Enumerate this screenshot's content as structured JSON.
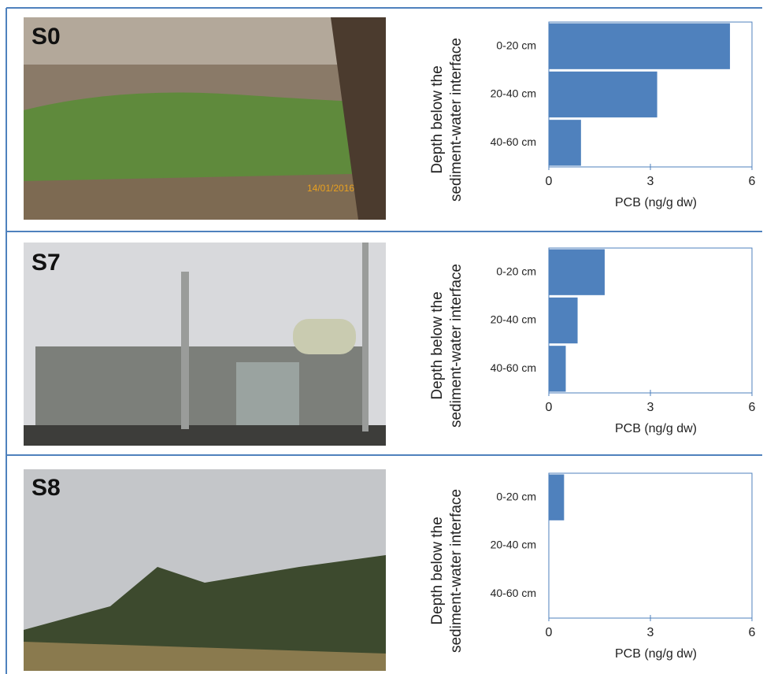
{
  "chart_data": [
    {
      "type": "barh",
      "title": "S0",
      "annotation": "14/01/2016",
      "categories": [
        "0-20 cm",
        "20-40 cm",
        "40-60 cm"
      ],
      "values": [
        5.35,
        3.2,
        0.95
      ],
      "color": "#4f81bd",
      "xlim": [
        0,
        6
      ],
      "xticks": [
        0,
        3,
        6
      ],
      "xlabel": "PCB  (ng/g dw)",
      "ylabel": [
        "Depth below the",
        "sediment-water interface"
      ]
    },
    {
      "type": "barh",
      "title": "S7",
      "categories": [
        "0-20 cm",
        "20-40 cm",
        "40-60 cm"
      ],
      "values": [
        1.65,
        0.85,
        0.5
      ],
      "color": "#4f81bd",
      "xlim": [
        0,
        6
      ],
      "xticks": [
        0,
        3,
        6
      ],
      "xlabel": "PCB  (ng/g dw)",
      "ylabel": [
        "Depth below the",
        "sediment-water interface"
      ]
    },
    {
      "type": "barh",
      "title": "S8",
      "categories": [
        "0-20 cm",
        "20-40 cm",
        "40-60 cm"
      ],
      "values": [
        0.45,
        0,
        0
      ],
      "color": "#4f81bd",
      "xlim": [
        0,
        6
      ],
      "xticks": [
        0,
        3,
        6
      ],
      "xlabel": "PCB  (ng/g dw)",
      "ylabel": [
        "Depth below the",
        "sediment-water interface"
      ]
    }
  ]
}
